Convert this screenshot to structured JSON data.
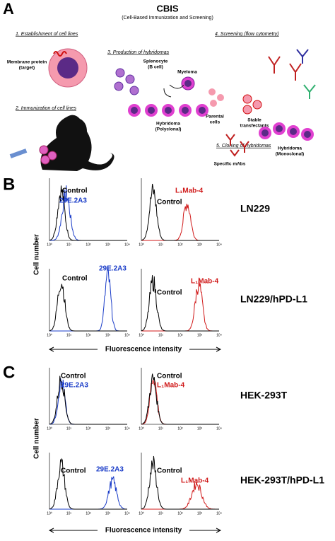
{
  "panel_a": {
    "label": "A",
    "title": "CBIS",
    "subtitle": "(Cell-Based Immunization and Screening)",
    "steps": [
      "1. Establishment of cell lines",
      "2. Immunization of cell lines",
      "3. Production of hybridomas",
      "4. Screening (flow cytometry)",
      "5. Cloning of hybridomas"
    ],
    "annotations": {
      "membrane_protein": [
        "Membrane protein",
        "(target)"
      ],
      "splenocyte": [
        "Splenocyte",
        "(B cell)"
      ],
      "myeloma": "Myeloma",
      "hybridoma_poly": [
        "Hybridoma",
        "(Polyclonal)"
      ],
      "parental": [
        "Parental",
        "cells"
      ],
      "stable": [
        "Stable",
        "transfectants"
      ],
      "mabs": "Specific mAbs",
      "hybridoma_mono": [
        "Hybridoma",
        "(Monoclonal)"
      ]
    }
  },
  "panel_b": {
    "label": "B",
    "y_label": "Cell number",
    "x_label": "Fluorescence intensity",
    "rows": [
      {
        "cell_line": "LN229",
        "plots": [
          {
            "control": "Control",
            "antibody": "29E.2A3"
          },
          {
            "control": "Control",
            "antibody": "L₁Mab-4"
          }
        ]
      },
      {
        "cell_line": "LN229/hPD-L1",
        "plots": [
          {
            "control": "Control",
            "antibody": "29E.2A3"
          },
          {
            "control": "Control",
            "antibody": "L₁Mab-4"
          }
        ]
      }
    ]
  },
  "panel_c": {
    "label": "C",
    "y_label": "Cell number",
    "x_label": "Fluorescence intensity",
    "rows": [
      {
        "cell_line": "HEK-293T",
        "plots": [
          {
            "control": "Control",
            "antibody": "29E.2A3"
          },
          {
            "control": "Control",
            "antibody": "L₁Mab-4"
          }
        ]
      },
      {
        "cell_line": "HEK-293T/hPD-L1",
        "plots": [
          {
            "control": "Control",
            "antibody": "29E.2A3"
          },
          {
            "control": "Control",
            "antibody": "L₁Mab-4"
          }
        ]
      }
    ]
  },
  "x_ticks": [
    "10⁰",
    "10¹",
    "10²",
    "10³",
    "10⁴"
  ]
}
